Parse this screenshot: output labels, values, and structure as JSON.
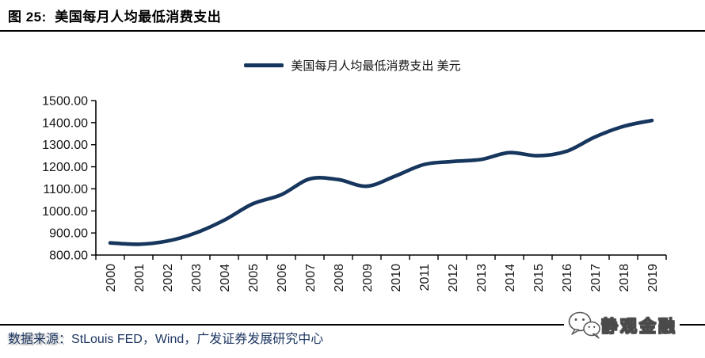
{
  "header": {
    "title": "图 25:  美国每月人均最低消费支出"
  },
  "legend": {
    "label": "美国每月人均最低消费支出 美元"
  },
  "chart_data": {
    "type": "line",
    "title": "美国每月人均最低消费支出",
    "unit": "美元",
    "categories": [
      "2000",
      "2001",
      "2002",
      "2003",
      "2004",
      "2005",
      "2006",
      "2007",
      "2008",
      "2009",
      "2010",
      "2011",
      "2012",
      "2013",
      "2014",
      "2015",
      "2016",
      "2017",
      "2018",
      "2019"
    ],
    "series": [
      {
        "name": "美国每月人均最低消费支出 美元",
        "values": [
          855,
          849,
          863,
          900,
          958,
          1032,
          1073,
          1145,
          1142,
          1112,
          1158,
          1210,
          1224,
          1233,
          1264,
          1250,
          1270,
          1335,
          1383,
          1410
        ]
      }
    ],
    "ylim": [
      800,
      1500
    ],
    "ytick_step": 100,
    "y_tick_labels": [
      "800.00",
      "900.00",
      "1000.00",
      "1100.00",
      "1200.00",
      "1300.00",
      "1400.00",
      "1500.00"
    ],
    "grid": false,
    "legend_position": "top",
    "line_color": "#17365D",
    "axis_color": "#000000",
    "tick_label_color": "#161616"
  },
  "footer": {
    "source_prefix": "数据来源：",
    "source_rest": "StLouis FED，Wind，广发证券发展研究中心",
    "logo_text": "静观金融"
  },
  "colors": {
    "line": "#17365D",
    "source_text": "#1F3864"
  }
}
